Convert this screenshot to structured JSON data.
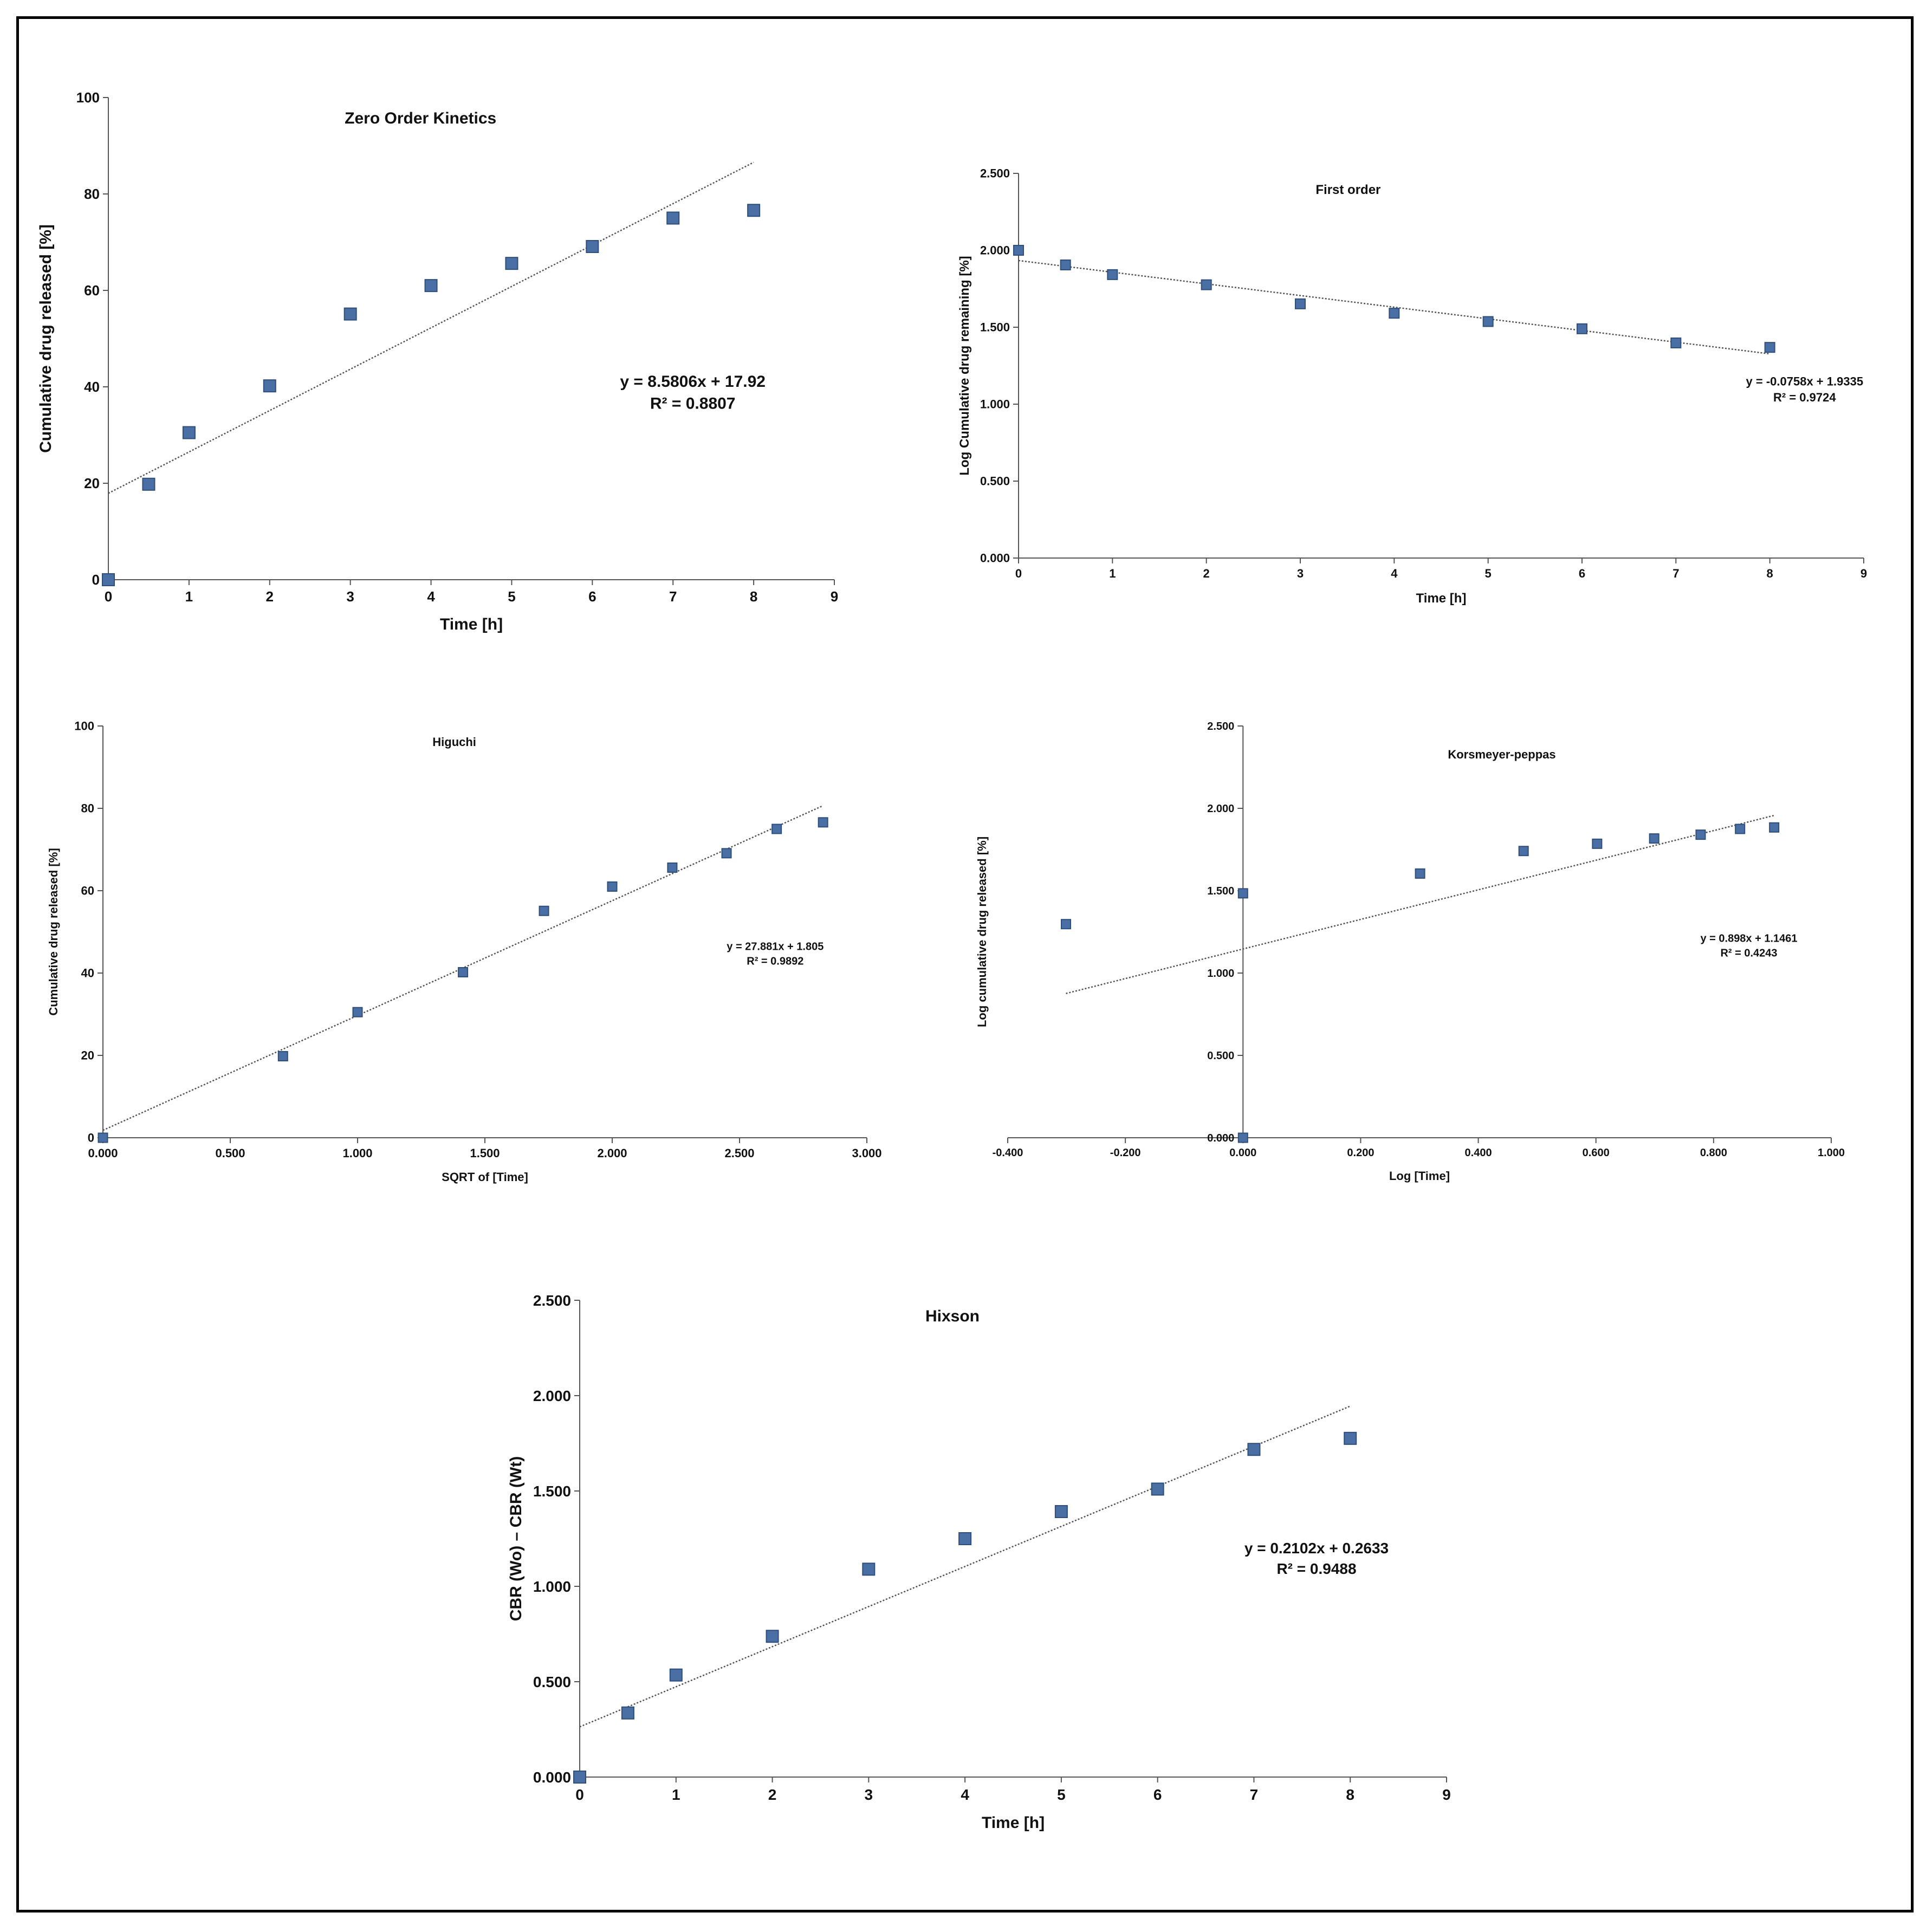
{
  "colors": {
    "marker": "#4a6fa5",
    "marker_edge": "#2f4f7a",
    "axis": "#555555",
    "trend": "#555555"
  },
  "chart_data": [
    {
      "id": "zero",
      "type": "scatter",
      "title": "Zero Order Kinetics",
      "xlabel": "Time [h]",
      "ylabel": "Cumulative drug released [%]",
      "xlim": [
        0,
        9
      ],
      "ylim": [
        0,
        100
      ],
      "xticks": [
        "0",
        "1",
        "2",
        "3",
        "4",
        "5",
        "6",
        "7",
        "8",
        "9"
      ],
      "yticks": [
        "0",
        "20",
        "40",
        "60",
        "80",
        "100"
      ],
      "x": [
        0,
        0.5,
        1,
        2,
        3,
        4,
        5,
        6,
        7,
        8
      ],
      "y": [
        0,
        19.8,
        30.5,
        40.2,
        55.1,
        61.0,
        65.6,
        69.1,
        75.0,
        76.6
      ],
      "trendline": {
        "slope": 8.5806,
        "intercept": 17.92,
        "x_range": [
          0,
          8
        ]
      },
      "equation": "y = 8.5806x + 17.92",
      "r2": "R² = 0.8807"
    },
    {
      "id": "first",
      "type": "scatter",
      "title": "First order",
      "xlabel": "Time [h]",
      "ylabel": "Log Cumulative drug remaining [%]",
      "xlim": [
        0,
        9
      ],
      "ylim": [
        0,
        2.5
      ],
      "xticks": [
        "0",
        "1",
        "2",
        "3",
        "4",
        "5",
        "6",
        "7",
        "8",
        "9"
      ],
      "yticks": [
        "0.000",
        "0.500",
        "1.000",
        "1.500",
        "2.000",
        "2.500"
      ],
      "x": [
        0,
        0.5,
        1,
        2,
        3,
        4,
        5,
        6,
        7,
        8
      ],
      "y": [
        2.0,
        1.905,
        1.842,
        1.776,
        1.652,
        1.591,
        1.537,
        1.49,
        1.398,
        1.369
      ],
      "trendline": {
        "slope": -0.0758,
        "intercept": 1.9335,
        "x_range": [
          0,
          8
        ]
      },
      "equation": "y = -0.0758x + 1.9335",
      "r2": "R² = 0.9724"
    },
    {
      "id": "higuchi",
      "type": "scatter",
      "title": "Higuchi",
      "xlabel": "SQRT of [Time]",
      "ylabel": "Cumulative drug released [%]",
      "xlim": [
        0,
        3
      ],
      "ylim": [
        0,
        100
      ],
      "xticks": [
        "0.000",
        "0.500",
        "1.000",
        "1.500",
        "2.000",
        "2.500",
        "3.000"
      ],
      "yticks": [
        "0",
        "20",
        "40",
        "60",
        "80",
        "100"
      ],
      "x": [
        0,
        0.707,
        1.0,
        1.414,
        1.732,
        2.0,
        2.236,
        2.449,
        2.646,
        2.828
      ],
      "y": [
        0,
        19.8,
        30.5,
        40.2,
        55.1,
        61.0,
        65.6,
        69.1,
        75.0,
        76.6
      ],
      "trendline": {
        "slope": 27.881,
        "intercept": 1.805,
        "x_range": [
          0,
          2.828
        ]
      },
      "equation": "y = 27.881x + 1.805",
      "r2": "R² = 0.9892"
    },
    {
      "id": "korsmeyer",
      "type": "scatter",
      "title": "Korsmeyer-peppas",
      "xlabel": "Log [Time]",
      "ylabel": "Log cumulative drug released [%]",
      "xlim": [
        -0.4,
        1.0
      ],
      "ylim": [
        0,
        2.5
      ],
      "xticks": [
        "-0.400",
        "-0.200",
        "0.000",
        "0.200",
        "0.400",
        "0.600",
        "0.800",
        "1.000"
      ],
      "yticks": [
        "0.000",
        "0.500",
        "1.000",
        "1.500",
        "2.000",
        "2.500"
      ],
      "x": [
        0,
        -0.301,
        0,
        0.301,
        0.477,
        0.602,
        0.699,
        0.778,
        0.845,
        0.903
      ],
      "y": [
        0,
        1.297,
        1.484,
        1.604,
        1.741,
        1.785,
        1.817,
        1.84,
        1.875,
        1.884
      ],
      "trendline": {
        "slope": 0.898,
        "intercept": 1.1461,
        "x_range": [
          -0.301,
          0.903
        ]
      },
      "equation": "y = 0.898x + 1.1461",
      "r2": "R² = 0.4243"
    },
    {
      "id": "hixson",
      "type": "scatter",
      "title": "Hixson",
      "xlabel": "Time [h]",
      "ylabel": "CBR (Wo) – CBR (Wt)",
      "xlim": [
        0,
        9
      ],
      "ylim": [
        0,
        2.5
      ],
      "xticks": [
        "0",
        "1",
        "2",
        "3",
        "4",
        "5",
        "6",
        "7",
        "8",
        "9"
      ],
      "yticks": [
        "0.000",
        "0.500",
        "1.000",
        "1.500",
        "2.000",
        "2.500"
      ],
      "x": [
        0,
        0.5,
        1,
        2,
        3,
        4,
        5,
        6,
        7,
        8
      ],
      "y": [
        0,
        0.336,
        0.535,
        0.738,
        1.09,
        1.25,
        1.392,
        1.51,
        1.718,
        1.776
      ],
      "trendline": {
        "slope": 0.2102,
        "intercept": 0.2633,
        "x_range": [
          0,
          8
        ]
      },
      "equation": "y = 0.2102x + 0.2633",
      "r2": "R² = 0.9488"
    }
  ]
}
